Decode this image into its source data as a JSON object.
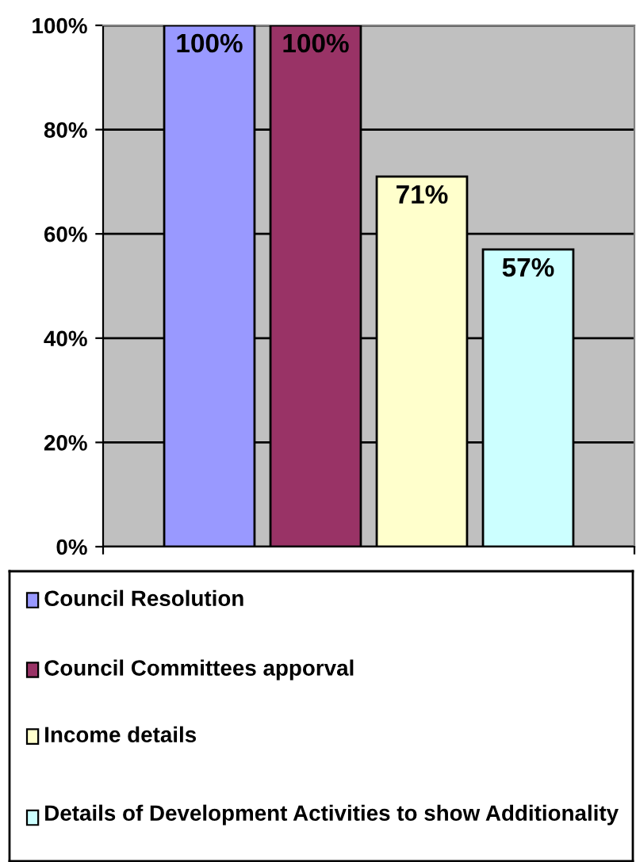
{
  "chart_data": {
    "type": "bar",
    "categories": [
      null
    ],
    "series": [
      {
        "name": "Council Resolution",
        "color": "#9999ff",
        "values": [
          100
        ],
        "value_labels": [
          "100%"
        ]
      },
      {
        "name": "Council Committees apporval",
        "color": "#993366",
        "values": [
          100
        ],
        "value_labels": [
          "100%"
        ]
      },
      {
        "name": "Income details",
        "color": "#ffffcc",
        "values": [
          71
        ],
        "value_labels": [
          "71%"
        ]
      },
      {
        "name": "Details of Development Activities to show Additionality",
        "color": "#ccffff",
        "values": [
          57
        ],
        "value_labels": [
          "57%"
        ]
      }
    ],
    "ylim": [
      0,
      100
    ],
    "yticks": [
      {
        "value": 0,
        "label": "0%"
      },
      {
        "value": 20,
        "label": "20%"
      },
      {
        "value": 40,
        "label": "40%"
      },
      {
        "value": 60,
        "label": "60%"
      },
      {
        "value": 80,
        "label": "80%"
      },
      {
        "value": 100,
        "label": "100%"
      }
    ],
    "grid": "y",
    "legend": "bottom"
  }
}
